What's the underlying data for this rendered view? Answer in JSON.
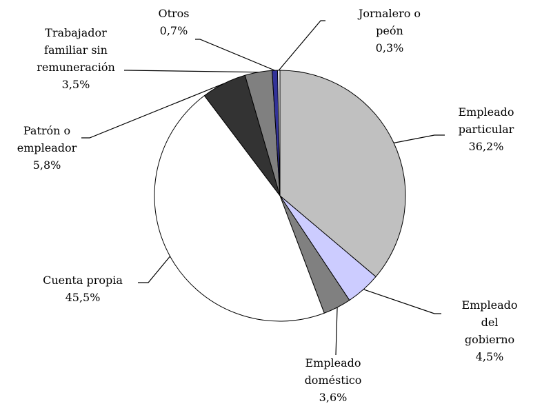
{
  "chart_data": {
    "type": "pie",
    "categories": [
      "Empleado\nparticular",
      "Empleado del\ngobierno",
      "Empleado\ndoméstico",
      "Cuenta propia",
      "Patrón o\nempleador",
      "Trabajador\nfamiliar sin\nremuneración",
      "Otros",
      "Jornalero o\npeón"
    ],
    "values": [
      36.2,
      4.5,
      3.6,
      45.5,
      5.8,
      3.5,
      0.7,
      0.3
    ],
    "value_labels": [
      "36,2%",
      "4,5%",
      "3,6%",
      "45,5%",
      "5,8%",
      "3,5%",
      "0,7%",
      "0,3%"
    ],
    "colors": [
      "#c0c0c0",
      "#ccccff",
      "#808080",
      "#ffffff",
      "#333333",
      "#808080",
      "#333399",
      "#ffffff"
    ]
  }
}
